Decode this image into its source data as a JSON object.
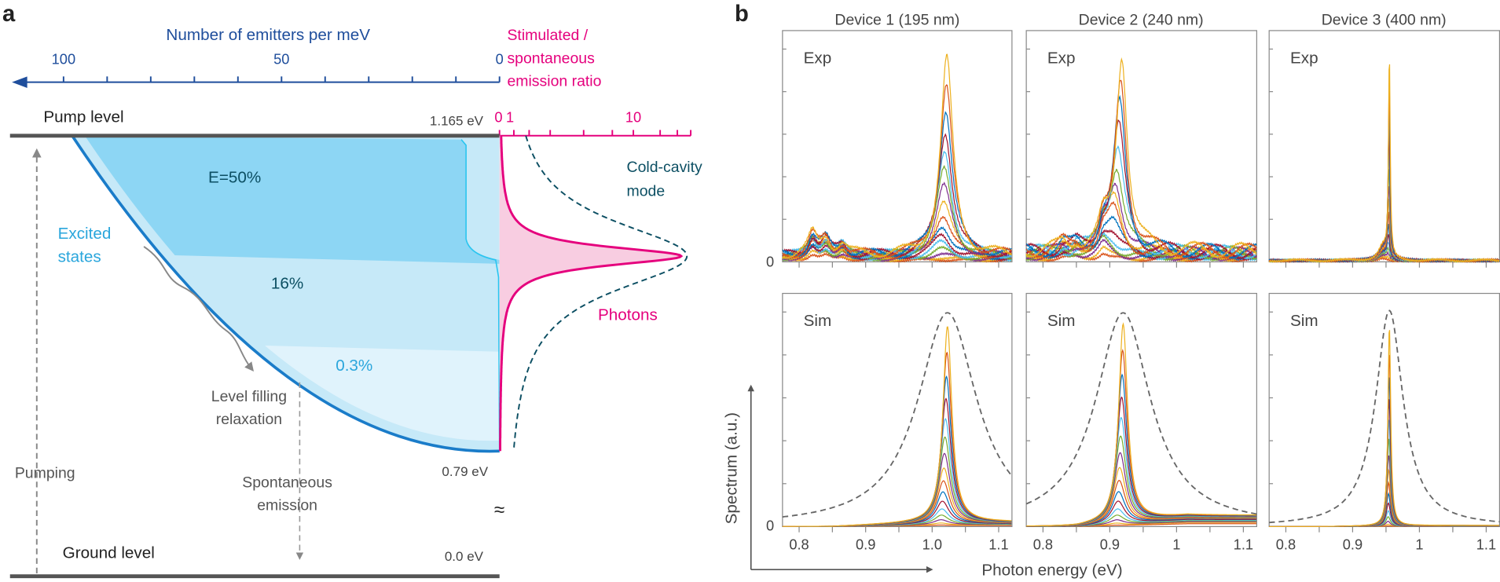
{
  "panel_a": {
    "label": "a",
    "emitters_axis": {
      "title": "Number of emitters per meV",
      "ticks": [
        "100",
        "50",
        "0"
      ],
      "range": [
        100,
        0
      ]
    },
    "ratio_axis": {
      "title_lines": [
        "Stimulated /",
        "spontaneous",
        "emission ratio"
      ],
      "tick_zero": "0",
      "tick_one": "1",
      "tick_ten": "10"
    },
    "pump_level": {
      "label": "Pump level",
      "energy": "1.165 eV"
    },
    "ground_level": {
      "label": "Ground level",
      "energy": "0.0 eV"
    },
    "band_bottom_energy": "0.79 eV",
    "regions": {
      "top": "E=50%",
      "middle": "16%",
      "bottom": "0.3%"
    },
    "excited_states": [
      "Excited",
      "states"
    ],
    "relaxation": [
      "Level filling",
      "relaxation"
    ],
    "pumping": "Pumping",
    "spontaneous": [
      "Spontaneous",
      "emission"
    ],
    "break_symbol": "≈",
    "cavity_label": [
      "Cold-cavity",
      "mode"
    ],
    "photons_label": "Photons",
    "colors": {
      "emitter_axis": "#1f4e9c",
      "ratio": "#e5007d",
      "cavity": "#0c4f63",
      "band": "#1a7cc9",
      "fill_top": "#8dd6f4",
      "fill_mid": "#c6e9f8",
      "fill_low": "#e0f3fc",
      "light_blue_text": "#2aa6dc"
    }
  },
  "panel_b": {
    "label": "b",
    "devices": [
      "Device 1 (195 nm)",
      "Device 2 (240 nm)",
      "Device 3 (400 nm)"
    ],
    "row_labels": [
      "Exp",
      "Sim"
    ],
    "zero_label": "0",
    "x_tick_labels": [
      [
        "0.8",
        "0.9",
        "1.0",
        "1.1"
      ],
      [
        "0.8",
        "0.9",
        "1",
        "1.1"
      ],
      [
        "0.8",
        "0.9",
        "1",
        "1.1"
      ]
    ],
    "xlabel": "Photon energy (eV)",
    "ylabel": "Spectrum (a.u.)"
  },
  "chart_data": {
    "type": "line",
    "xlim": [
      0.775,
      1.12
    ],
    "ylim": [
      0,
      1
    ],
    "x_ticks": [
      0.8,
      0.9,
      1.0,
      1.1
    ],
    "series_colors": [
      "#0072BD",
      "#D95319",
      "#EDB120",
      "#7E2F8E",
      "#77AC30",
      "#4DBEEE",
      "#A2142F"
    ],
    "panels": [
      {
        "row": "Exp",
        "device": 1,
        "peak_energy": 1.022,
        "peak_height": 0.87,
        "linewidth": 0.011,
        "n_spectra": 16,
        "background": 0.05,
        "bumps": [
          [
            0.82,
            0.09
          ],
          [
            0.84,
            0.07
          ],
          [
            0.865,
            0.05
          ]
        ]
      },
      {
        "row": "Exp",
        "device": 2,
        "peak_energy": 0.918,
        "peak_height": 0.87,
        "linewidth": 0.01,
        "n_spectra": 16,
        "background": 0.08,
        "bumps": [
          [
            0.89,
            0.1
          ],
          [
            0.85,
            0.03
          ],
          [
            0.83,
            0.03
          ]
        ]
      },
      {
        "row": "Exp",
        "device": 3,
        "peak_energy": 0.955,
        "peak_height": 0.9,
        "linewidth": 0.0015,
        "n_spectra": 16,
        "background": 0.01,
        "bumps": [
          [
            0.945,
            0.06
          ]
        ]
      },
      {
        "row": "Sim",
        "device": 1,
        "peak_energy": 1.023,
        "peak_height": 0.86,
        "linewidth": 0.008,
        "n_spectra": 16,
        "background": 0.02,
        "cavity": {
          "center": 1.023,
          "height": 0.94,
          "linewidth": 0.054
        }
      },
      {
        "row": "Sim",
        "device": 2,
        "peak_energy": 0.92,
        "peak_height": 0.87,
        "linewidth": 0.008,
        "n_spectra": 16,
        "background": 0.05,
        "cavity": {
          "center": 0.92,
          "height": 0.94,
          "linewidth": 0.05
        }
      },
      {
        "row": "Sim",
        "device": 3,
        "peak_energy": 0.955,
        "peak_height": 0.88,
        "linewidth": 0.0025,
        "n_spectra": 16,
        "background": 0.005,
        "cavity": {
          "center": 0.955,
          "height": 0.95,
          "linewidth": 0.025
        }
      }
    ]
  }
}
